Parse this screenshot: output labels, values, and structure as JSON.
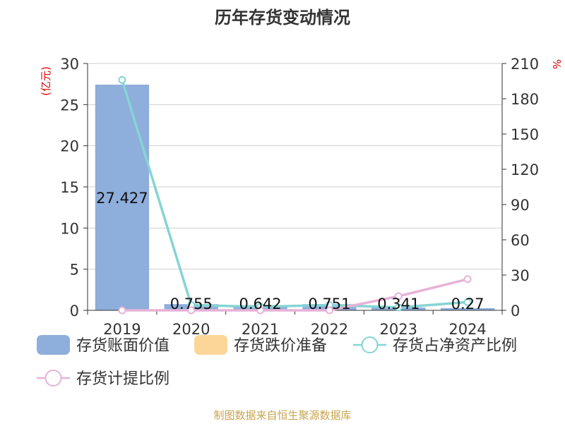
{
  "chart_data": {
    "type": "bar+line",
    "title": "历年存货变动情况",
    "categories": [
      "2019",
      "2020",
      "2021",
      "2022",
      "2023",
      "2024"
    ],
    "left_axis": {
      "label": "(亿元)",
      "ylim": [
        0,
        30
      ],
      "ticks": [
        0,
        5,
        10,
        15,
        20,
        25,
        30
      ]
    },
    "right_axis": {
      "label": "%",
      "ylim": [
        0,
        210
      ],
      "ticks": [
        0,
        30,
        60,
        90,
        120,
        150,
        180,
        210
      ]
    },
    "grid": true,
    "legend_position": "bottom",
    "series": [
      {
        "name": "存货账面价值",
        "kind": "bar",
        "axis": "left",
        "color": "#8eaedb",
        "values": [
          27.427,
          0.755,
          0.642,
          0.751,
          0.341,
          0.27
        ],
        "labels": [
          "27.427",
          "0.755",
          "0.642",
          "0.751",
          "0.341",
          "0.27"
        ]
      },
      {
        "name": "存货跌价准备",
        "kind": "bar",
        "axis": "left",
        "color": "#fcd699",
        "values": [
          0,
          0,
          0,
          0,
          0,
          0
        ]
      },
      {
        "name": "存货占净资产比例",
        "kind": "line",
        "axis": "right",
        "color": "#86d4d4",
        "values": [
          196,
          4.5,
          3,
          4.5,
          2.5,
          7
        ]
      },
      {
        "name": "存货计提比例",
        "kind": "line",
        "axis": "right",
        "color": "#e6b3d7",
        "values": [
          0,
          0,
          0,
          0,
          12,
          26.5
        ]
      }
    ],
    "source": "制图数据来自恒生聚源数据库"
  }
}
